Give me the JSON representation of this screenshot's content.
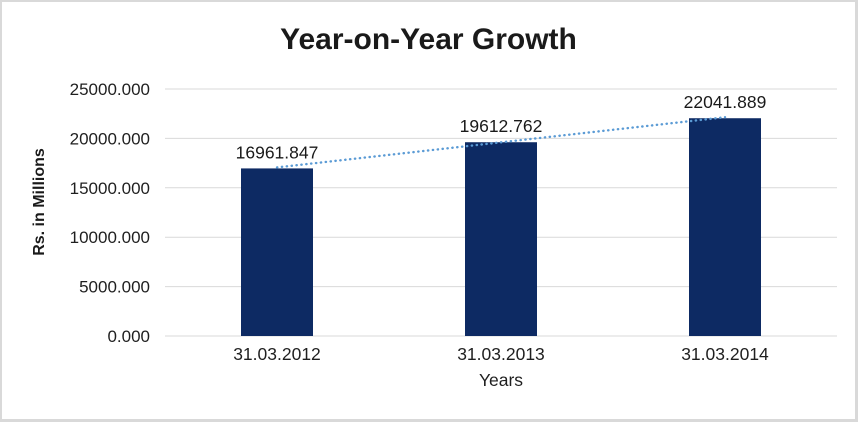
{
  "chart_data": {
    "type": "bar",
    "title": "Year-on-Year Growth",
    "xlabel": "Years",
    "ylabel": "Rs. in Millions",
    "categories": [
      "31.03.2012",
      "31.03.2013",
      "31.03.2014"
    ],
    "values": [
      16961.847,
      19612.762,
      22041.889
    ],
    "data_labels": [
      "16961.847",
      "19612.762",
      "22041.889"
    ],
    "y_ticks": [
      {
        "value": 25000,
        "label": "25000.000"
      },
      {
        "value": 20000,
        "label": "20000.000"
      },
      {
        "value": 15000,
        "label": "15000.000"
      },
      {
        "value": 10000,
        "label": "10000.000"
      },
      {
        "value": 5000,
        "label": "5000.000"
      },
      {
        "value": 0,
        "label": "0.000"
      }
    ],
    "ylim": [
      0,
      25000
    ],
    "grid": true,
    "legend": "none",
    "trendline": {
      "type": "linear",
      "style": "dotted"
    },
    "colors": {
      "bar": "#0D2A63",
      "trendline": "#5B9BD5",
      "gridline": "#D9D9D9",
      "frame_border": "#D9D9D9",
      "title_text": "#1A1A1A",
      "axis_text": "#1F1F1F",
      "background": "#FFFFFF"
    }
  }
}
